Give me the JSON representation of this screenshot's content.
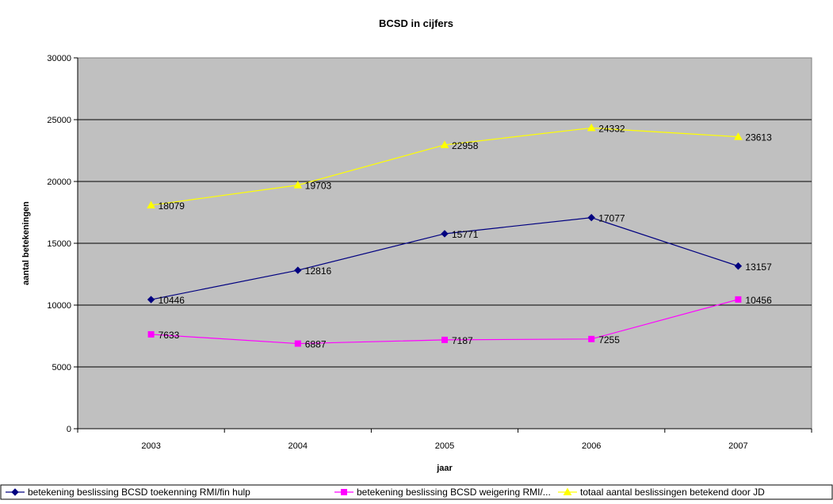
{
  "chart_data": {
    "type": "line",
    "title": "BCSD in cijfers",
    "xlabel": "jaar",
    "ylabel": "aantal betekeningen",
    "categories": [
      "2003",
      "2004",
      "2005",
      "2006",
      "2007"
    ],
    "ylim": [
      0,
      30000
    ],
    "yticks": [
      0,
      5000,
      10000,
      15000,
      20000,
      25000,
      30000
    ],
    "grid": true,
    "legend": "bottom",
    "series": [
      {
        "name": "betekening beslissing BCSD toekenning RMI/fin hulp",
        "color": "#000080",
        "marker": "diamond",
        "values": [
          10446,
          12816,
          15771,
          17077,
          13157
        ]
      },
      {
        "name": "betekening beslissing BCSD weigering RMI/...",
        "color": "#FF00FF",
        "marker": "square",
        "values": [
          7633,
          6887,
          7187,
          7255,
          10456
        ]
      },
      {
        "name": "totaal aantal beslissingen betekend door JD",
        "color": "#FFFF00",
        "marker": "triangle",
        "values": [
          18079,
          19703,
          22958,
          24332,
          23613
        ]
      }
    ],
    "plot_background": "#C0C0C0"
  }
}
